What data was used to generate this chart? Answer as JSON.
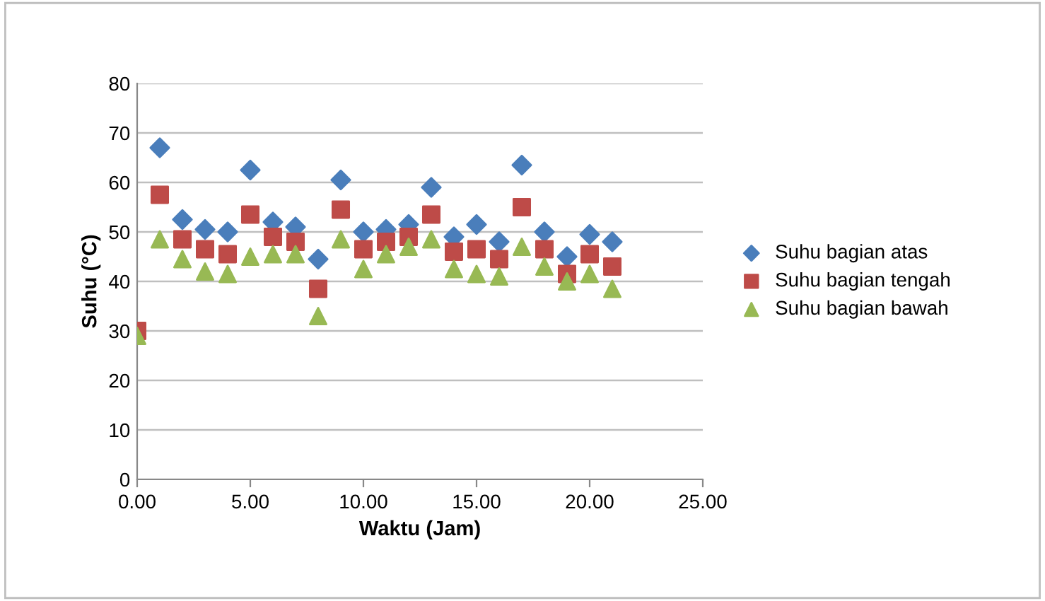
{
  "chart_data": {
    "type": "scatter",
    "xlabel": "Waktu (Jam)",
    "ylabel": "Suhu (°C)",
    "x": [
      0,
      1,
      2,
      3,
      4,
      5,
      6,
      7,
      8,
      9,
      10,
      11,
      12,
      13,
      14,
      15,
      16,
      17,
      18,
      19,
      20,
      21
    ],
    "series": [
      {
        "name": "Suhu bagian atas",
        "color": "#4a7ebb",
        "marker": "diamond",
        "values": [
          null,
          67,
          52.5,
          50.5,
          50,
          62.5,
          52,
          51,
          44.5,
          60.5,
          50,
          50.5,
          51.5,
          59,
          49,
          51.5,
          48,
          63.5,
          50,
          45,
          49.5,
          48
        ]
      },
      {
        "name": "Suhu bagian tengah",
        "color": "#be4b48",
        "marker": "square",
        "values": [
          30,
          57.5,
          48.5,
          46.5,
          45.5,
          53.5,
          49,
          48,
          38.5,
          54.5,
          46.5,
          48,
          49,
          53.5,
          46,
          46.5,
          44.5,
          55,
          46.5,
          41.5,
          45.5,
          43
        ]
      },
      {
        "name": "Suhu bagian bawah",
        "color": "#98b954",
        "marker": "triangle",
        "values": [
          29,
          48.5,
          44.5,
          42,
          41.5,
          45,
          45.5,
          45.5,
          33,
          48.5,
          42.5,
          45.5,
          47,
          48.5,
          42.5,
          41.5,
          41,
          47,
          43,
          40,
          41.5,
          38.5
        ]
      }
    ],
    "xlim": [
      0,
      25
    ],
    "xticks": [
      {
        "value": 0,
        "label": "0.00"
      },
      {
        "value": 5,
        "label": "5.00"
      },
      {
        "value": 10,
        "label": "10.00"
      },
      {
        "value": 15,
        "label": "15.00"
      },
      {
        "value": 20,
        "label": "20.00"
      },
      {
        "value": 25,
        "label": "25.00"
      }
    ],
    "ylim": [
      0,
      80
    ],
    "yticks": [
      0,
      10,
      20,
      30,
      40,
      50,
      60,
      70,
      80
    ],
    "grid": "y",
    "legend": "right"
  }
}
